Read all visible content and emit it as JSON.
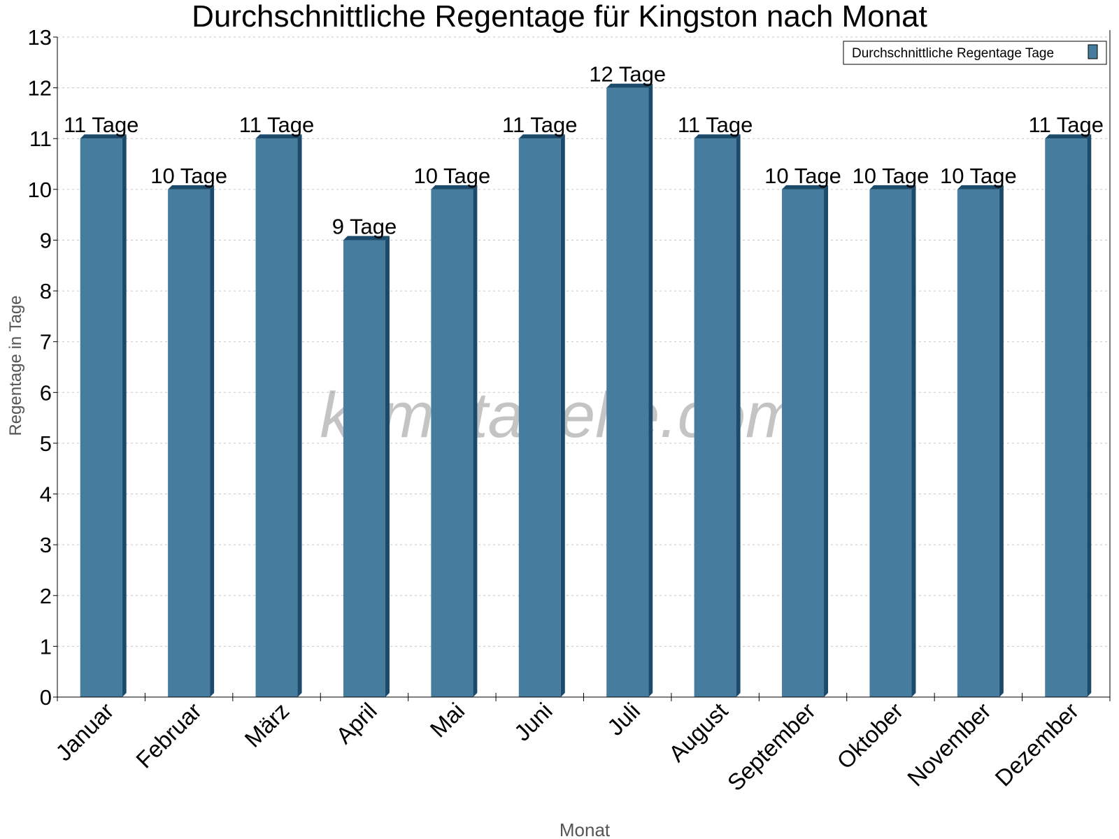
{
  "chart_data": {
    "type": "bar",
    "title": "Durchschnittliche Regentage für Kingston nach Monat",
    "xlabel": "Monat",
    "ylabel": "Regentage in Tage",
    "categories": [
      "Januar",
      "Februar",
      "März",
      "April",
      "Mai",
      "Juni",
      "Juli",
      "August",
      "September",
      "Oktober",
      "November",
      "Dezember"
    ],
    "series": [
      {
        "name": "Durchschnittliche Regentage Tage",
        "values": [
          11,
          10,
          11,
          9,
          10,
          11,
          12,
          11,
          10,
          10,
          10,
          11
        ],
        "color": "#467c9e",
        "side_color": "#1b4a6b"
      }
    ],
    "data_labels": [
      "11 Tage",
      "10 Tage",
      "11 Tage",
      "9 Tage",
      "10 Tage",
      "11 Tage",
      "12 Tage",
      "11 Tage",
      "10 Tage",
      "10 Tage",
      "10 Tage",
      "11 Tage"
    ],
    "ylim": [
      0,
      13
    ],
    "yticks": [
      0,
      1,
      2,
      3,
      4,
      5,
      6,
      7,
      8,
      9,
      10,
      11,
      12,
      13
    ],
    "grid": true,
    "legend_position": "top-right",
    "watermark": "klimatabelle.com"
  }
}
